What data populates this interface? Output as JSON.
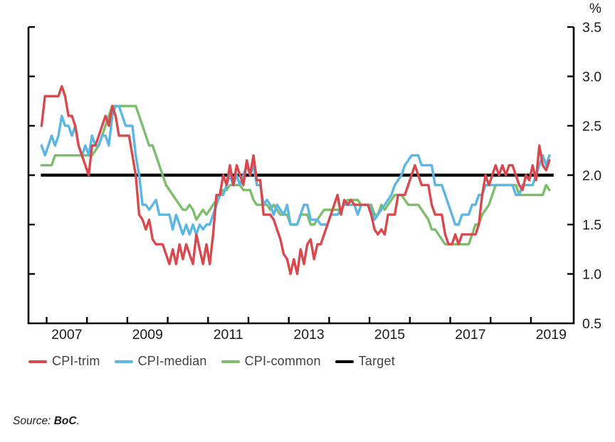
{
  "chart_data": {
    "type": "line",
    "title": "",
    "unit_label": "%",
    "frequency": "monthly",
    "start_period": "2006-11",
    "end_period": "2019-06",
    "axis": {
      "y_min": 0.5,
      "y_max": 3.5,
      "y_ticks": [
        {
          "value": 3.5,
          "label": "3.5"
        },
        {
          "value": 3.0,
          "label": "3.0"
        },
        {
          "value": 2.5,
          "label": "2.5"
        },
        {
          "value": 2.0,
          "label": "2.0"
        },
        {
          "value": 1.5,
          "label": "1.5"
        },
        {
          "value": 1.0,
          "label": "1.0"
        },
        {
          "value": 0.5,
          "label": "0.5"
        }
      ],
      "x_tick_years": [
        2007,
        2008,
        2009,
        2010,
        2011,
        2012,
        2013,
        2014,
        2015,
        2016,
        2017,
        2018,
        2019
      ],
      "x_labels": [
        {
          "year": 2007,
          "label": "2007"
        },
        {
          "year": 2009,
          "label": "2009"
        },
        {
          "year": 2011,
          "label": "2011"
        },
        {
          "year": 2013,
          "label": "2013"
        },
        {
          "year": 2015,
          "label": "2015"
        },
        {
          "year": 2017,
          "label": "2017"
        },
        {
          "year": 2019,
          "label": "2019"
        }
      ],
      "grid": false
    },
    "target": {
      "name": "Target",
      "color": "#000000",
      "value": 2.0
    },
    "series": [
      {
        "name": "CPI-common",
        "color": "#7cbd6b",
        "values": [
          2.1,
          2.1,
          2.1,
          2.1,
          2.2,
          2.2,
          2.2,
          2.2,
          2.2,
          2.2,
          2.2,
          2.2,
          2.2,
          2.2,
          2.2,
          2.2,
          2.25,
          2.3,
          2.4,
          2.5,
          2.6,
          2.7,
          2.7,
          2.7,
          2.7,
          2.7,
          2.7,
          2.7,
          2.7,
          2.6,
          2.5,
          2.4,
          2.3,
          2.3,
          2.2,
          2.1,
          2.0,
          1.9,
          1.85,
          1.8,
          1.75,
          1.7,
          1.65,
          1.65,
          1.7,
          1.65,
          1.55,
          1.6,
          1.65,
          1.6,
          1.65,
          1.7,
          1.75,
          1.8,
          1.85,
          1.85,
          1.9,
          1.9,
          1.9,
          1.9,
          1.85,
          1.85,
          1.85,
          1.75,
          1.7,
          1.7,
          1.7,
          1.7,
          1.65,
          1.7,
          1.65,
          1.6,
          1.6,
          1.6,
          1.5,
          1.5,
          1.5,
          1.6,
          1.6,
          1.6,
          1.5,
          1.5,
          1.55,
          1.6,
          1.65,
          1.65,
          1.65,
          1.65,
          1.65,
          1.65,
          1.7,
          1.75,
          1.75,
          1.75,
          1.75,
          1.7,
          1.7,
          1.7,
          1.7,
          1.6,
          1.6,
          1.7,
          1.65,
          1.7,
          1.75,
          1.8,
          1.8,
          1.8,
          1.75,
          1.7,
          1.7,
          1.7,
          1.7,
          1.65,
          1.6,
          1.55,
          1.45,
          1.45,
          1.4,
          1.35,
          1.3,
          1.3,
          1.3,
          1.3,
          1.3,
          1.3,
          1.3,
          1.3,
          1.4,
          1.5,
          1.5,
          1.6,
          1.65,
          1.7,
          1.8,
          1.9,
          1.9,
          1.9,
          1.9,
          1.9,
          1.9,
          1.9,
          1.8,
          1.8,
          1.8,
          1.8,
          1.8,
          1.8,
          1.8,
          1.8,
          1.9,
          1.85
        ]
      },
      {
        "name": "CPI-median",
        "color": "#5ab6e4",
        "values": [
          2.3,
          2.2,
          2.3,
          2.4,
          2.3,
          2.4,
          2.6,
          2.5,
          2.5,
          2.4,
          2.5,
          2.3,
          2.2,
          2.3,
          2.2,
          2.4,
          2.3,
          2.3,
          2.4,
          2.4,
          2.3,
          2.6,
          2.7,
          2.7,
          2.6,
          2.5,
          2.5,
          2.5,
          2.2,
          2.0,
          1.7,
          1.7,
          1.65,
          1.7,
          1.75,
          1.6,
          1.6,
          1.6,
          1.6,
          1.45,
          1.6,
          1.5,
          1.4,
          1.5,
          1.4,
          1.5,
          1.4,
          1.5,
          1.45,
          1.5,
          1.5,
          1.6,
          1.7,
          1.8,
          1.8,
          1.9,
          2.0,
          1.9,
          2.0,
          1.9,
          2.0,
          2.1,
          2.0,
          2.1,
          1.9,
          1.9,
          1.7,
          1.75,
          1.7,
          1.6,
          1.7,
          1.65,
          1.6,
          1.7,
          1.5,
          1.5,
          1.5,
          1.6,
          1.7,
          1.7,
          1.55,
          1.55,
          1.55,
          1.5,
          1.5,
          1.5,
          1.6,
          1.6,
          1.6,
          1.65,
          1.7,
          1.7,
          1.7,
          1.7,
          1.6,
          1.7,
          1.7,
          1.7,
          1.65,
          1.55,
          1.6,
          1.65,
          1.7,
          1.75,
          1.8,
          1.9,
          1.95,
          2.0,
          2.1,
          2.15,
          2.2,
          2.2,
          2.2,
          2.1,
          2.1,
          2.1,
          2.1,
          1.9,
          1.9,
          1.9,
          1.8,
          1.7,
          1.6,
          1.5,
          1.5,
          1.6,
          1.6,
          1.6,
          1.7,
          1.7,
          1.8,
          1.8,
          1.9,
          1.9,
          1.9,
          1.9,
          1.9,
          1.9,
          1.9,
          1.9,
          1.9,
          1.8,
          1.8,
          1.9,
          1.9,
          1.9,
          1.9,
          2.0,
          2.1,
          2.2,
          2.1,
          2.2
        ]
      },
      {
        "name": "CPI-trim",
        "color": "#d9484d",
        "values": [
          2.5,
          2.8,
          2.8,
          2.8,
          2.8,
          2.8,
          2.9,
          2.8,
          2.6,
          2.6,
          2.5,
          2.3,
          2.2,
          2.1,
          2.0,
          2.3,
          2.3,
          2.4,
          2.5,
          2.6,
          2.5,
          2.7,
          2.6,
          2.4,
          2.4,
          2.4,
          2.4,
          2.2,
          2.0,
          1.6,
          1.55,
          1.45,
          1.55,
          1.35,
          1.3,
          1.3,
          1.3,
          1.2,
          1.1,
          1.25,
          1.1,
          1.3,
          1.15,
          1.3,
          1.2,
          1.1,
          1.4,
          1.25,
          1.1,
          1.3,
          1.1,
          1.4,
          1.8,
          1.8,
          2.0,
          1.9,
          2.1,
          1.9,
          2.1,
          2.0,
          1.9,
          2.15,
          2.0,
          2.2,
          1.95,
          1.95,
          1.6,
          1.6,
          1.6,
          1.55,
          1.45,
          1.35,
          1.2,
          1.15,
          1.0,
          1.15,
          1.0,
          1.25,
          1.1,
          1.3,
          1.35,
          1.15,
          1.3,
          1.3,
          1.4,
          1.5,
          1.6,
          1.7,
          1.8,
          1.6,
          1.75,
          1.7,
          1.75,
          1.7,
          1.7,
          1.7,
          1.7,
          1.7,
          1.6,
          1.45,
          1.4,
          1.45,
          1.4,
          1.6,
          1.6,
          1.6,
          1.8,
          1.8,
          1.8,
          1.9,
          2.0,
          2.1,
          2.0,
          1.9,
          1.9,
          1.9,
          1.7,
          1.6,
          1.6,
          1.6,
          1.4,
          1.3,
          1.3,
          1.4,
          1.3,
          1.4,
          1.4,
          1.4,
          1.4,
          1.4,
          1.5,
          1.8,
          2.0,
          1.9,
          2.0,
          2.1,
          2.0,
          2.1,
          2.0,
          2.1,
          2.1,
          2.0,
          1.9,
          1.85,
          2.0,
          1.95,
          2.1,
          1.95,
          2.3,
          2.1,
          2.05,
          2.15
        ]
      }
    ]
  },
  "legend": {
    "items": [
      {
        "label": "CPI-trim",
        "color": "#d9484d"
      },
      {
        "label": "CPI-median",
        "color": "#5ab6e4"
      },
      {
        "label": "CPI-common",
        "color": "#7cbd6b"
      },
      {
        "label": "Target",
        "color": "#000000"
      }
    ]
  },
  "source": {
    "prefix": "Source: ",
    "name": "BoC",
    "suffix": "."
  }
}
